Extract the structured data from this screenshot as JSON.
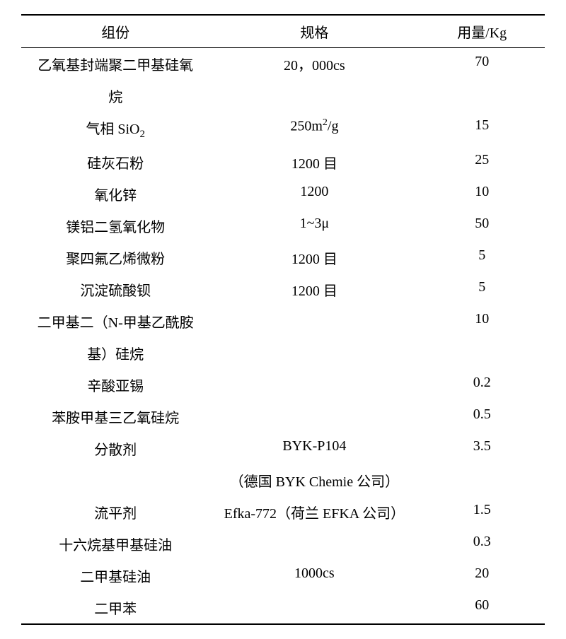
{
  "table": {
    "headers": [
      "组份",
      "规格",
      "用量/Kg"
    ],
    "rows": [
      {
        "c1": "乙氧基封端聚二甲基硅氧烷",
        "c2": "20，000cs",
        "c3": "70"
      },
      {
        "c1": "气相 SiO₂",
        "c2": "250m²/g",
        "c3": "15"
      },
      {
        "c1": "硅灰石粉",
        "c2": "1200 目",
        "c3": "25"
      },
      {
        "c1": "氧化锌",
        "c2": "1200",
        "c3": "10"
      },
      {
        "c1": "镁铝二氢氧化物",
        "c2": "1~3μ",
        "c3": "50"
      },
      {
        "c1": "聚四氟乙烯微粉",
        "c2": "1200 目",
        "c3": "5"
      },
      {
        "c1": "沉淀硫酸钡",
        "c2": "1200 目",
        "c3": "5"
      },
      {
        "c1": "二甲基二（N-甲基乙酰胺基）硅烷",
        "c2": "",
        "c3": "10"
      },
      {
        "c1": "辛酸亚锡",
        "c2": "",
        "c3": "0.2"
      },
      {
        "c1": "苯胺甲基三乙氧硅烷",
        "c2": "",
        "c3": "0.5"
      },
      {
        "c1": "分散剂",
        "c2": "BYK-P104（德国 BYK Chemie 公司）",
        "c3": "3.5"
      },
      {
        "c1": "流平剂",
        "c2": "Efka-772（荷兰 EFKA 公司）",
        "c3": "1.5"
      },
      {
        "c1": "十六烷基甲基硅油",
        "c2": "",
        "c3": "0.3"
      },
      {
        "c1": "二甲基硅油",
        "c2": "1000cs",
        "c3": "20"
      },
      {
        "c1": "二甲苯",
        "c2": "",
        "c3": "60"
      }
    ]
  }
}
